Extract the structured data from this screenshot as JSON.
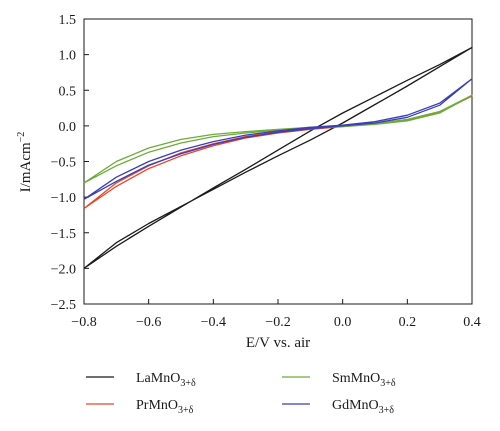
{
  "chart_data": {
    "type": "line",
    "title": "",
    "xlabel": "E/V vs. air",
    "ylabel": "I/mAcm",
    "ylabel_sup": "−2",
    "xlim": [
      -0.8,
      0.4
    ],
    "ylim": [
      -2.5,
      1.5
    ],
    "xticks": [
      -0.8,
      -0.6,
      -0.4,
      -0.2,
      0.0,
      0.2,
      0.4
    ],
    "xtick_labels": [
      "−0.8",
      "−0.6",
      "−0.4",
      "−0.2",
      "0.0",
      "0.2",
      "0.4"
    ],
    "yticks": [
      -2.5,
      -2.0,
      -1.5,
      -1.0,
      -0.5,
      0.0,
      0.5,
      1.0,
      1.5
    ],
    "ytick_labels": [
      "−2.5",
      "−2.0",
      "−1.5",
      "−1.0",
      "−0.5",
      "0.0",
      "0.5",
      "1.0",
      "1.5"
    ],
    "grid": false,
    "legend_placement": "bottom",
    "series": [
      {
        "name_main": "LaMnO",
        "name_sub": "3+δ",
        "color": "#1a1a1a",
        "forward": [
          [
            -0.8,
            -2.0
          ],
          [
            -0.7,
            -1.64
          ],
          [
            -0.6,
            -1.37
          ],
          [
            -0.5,
            -1.13
          ],
          [
            -0.4,
            -0.89
          ],
          [
            -0.3,
            -0.65
          ],
          [
            -0.2,
            -0.42
          ],
          [
            -0.1,
            -0.2
          ],
          [
            0.0,
            0.04
          ],
          [
            0.1,
            0.3
          ],
          [
            0.2,
            0.56
          ],
          [
            0.3,
            0.83
          ],
          [
            0.4,
            1.1
          ]
        ],
        "reverse": [
          [
            0.4,
            1.1
          ],
          [
            0.3,
            0.86
          ],
          [
            0.2,
            0.64
          ],
          [
            0.1,
            0.41
          ],
          [
            0.0,
            0.18
          ],
          [
            -0.1,
            -0.07
          ],
          [
            -0.2,
            -0.34
          ],
          [
            -0.3,
            -0.61
          ],
          [
            -0.4,
            -0.87
          ],
          [
            -0.5,
            -1.14
          ],
          [
            -0.6,
            -1.41
          ],
          [
            -0.7,
            -1.69
          ],
          [
            -0.8,
            -2.0
          ]
        ]
      },
      {
        "name_main": "PrMnO",
        "name_sub": "3+δ",
        "color": "#e8472a",
        "forward": [
          [
            -0.8,
            -1.16
          ],
          [
            -0.7,
            -0.8
          ],
          [
            -0.6,
            -0.56
          ],
          [
            -0.5,
            -0.38
          ],
          [
            -0.4,
            -0.25
          ],
          [
            -0.3,
            -0.15
          ],
          [
            -0.2,
            -0.08
          ],
          [
            -0.1,
            -0.03
          ],
          [
            0.0,
            0.0
          ],
          [
            0.1,
            0.03
          ],
          [
            0.2,
            0.09
          ],
          [
            0.3,
            0.2
          ],
          [
            0.4,
            0.42
          ]
        ],
        "reverse": [
          [
            0.4,
            0.42
          ],
          [
            0.3,
            0.19
          ],
          [
            0.2,
            0.08
          ],
          [
            0.1,
            0.03
          ],
          [
            0.0,
            -0.01
          ],
          [
            -0.1,
            -0.05
          ],
          [
            -0.2,
            -0.1
          ],
          [
            -0.3,
            -0.17
          ],
          [
            -0.4,
            -0.28
          ],
          [
            -0.5,
            -0.42
          ],
          [
            -0.6,
            -0.6
          ],
          [
            -0.7,
            -0.85
          ],
          [
            -0.8,
            -1.16
          ]
        ]
      },
      {
        "name_main": "SmMnO",
        "name_sub": "3+δ",
        "color": "#6dac3a",
        "forward": [
          [
            -0.8,
            -0.8
          ],
          [
            -0.7,
            -0.5
          ],
          [
            -0.6,
            -0.31
          ],
          [
            -0.5,
            -0.19
          ],
          [
            -0.4,
            -0.12
          ],
          [
            -0.3,
            -0.08
          ],
          [
            -0.2,
            -0.05
          ],
          [
            -0.1,
            -0.02
          ],
          [
            0.0,
            0.0
          ],
          [
            0.1,
            0.03
          ],
          [
            0.2,
            0.09
          ],
          [
            0.3,
            0.2
          ],
          [
            0.4,
            0.43
          ]
        ],
        "reverse": [
          [
            0.4,
            0.43
          ],
          [
            0.3,
            0.18
          ],
          [
            0.2,
            0.07
          ],
          [
            0.1,
            0.02
          ],
          [
            0.0,
            -0.01
          ],
          [
            -0.1,
            -0.03
          ],
          [
            -0.2,
            -0.06
          ],
          [
            -0.3,
            -0.1
          ],
          [
            -0.4,
            -0.15
          ],
          [
            -0.5,
            -0.24
          ],
          [
            -0.6,
            -0.37
          ],
          [
            -0.7,
            -0.56
          ],
          [
            -0.8,
            -0.8
          ]
        ]
      },
      {
        "name_main": "GdMnO",
        "name_sub": "3+δ",
        "color": "#3a3fb5",
        "forward": [
          [
            -0.8,
            -1.03
          ],
          [
            -0.7,
            -0.72
          ],
          [
            -0.6,
            -0.5
          ],
          [
            -0.5,
            -0.34
          ],
          [
            -0.4,
            -0.22
          ],
          [
            -0.3,
            -0.13
          ],
          [
            -0.2,
            -0.07
          ],
          [
            -0.1,
            -0.02
          ],
          [
            0.0,
            0.01
          ],
          [
            0.1,
            0.06
          ],
          [
            0.2,
            0.15
          ],
          [
            0.3,
            0.32
          ],
          [
            0.4,
            0.66
          ]
        ],
        "reverse": [
          [
            0.4,
            0.66
          ],
          [
            0.3,
            0.29
          ],
          [
            0.2,
            0.12
          ],
          [
            0.1,
            0.04
          ],
          [
            0.0,
            0.0
          ],
          [
            -0.1,
            -0.04
          ],
          [
            -0.2,
            -0.09
          ],
          [
            -0.3,
            -0.16
          ],
          [
            -0.4,
            -0.26
          ],
          [
            -0.5,
            -0.39
          ],
          [
            -0.6,
            -0.55
          ],
          [
            -0.7,
            -0.78
          ],
          [
            -0.8,
            -1.03
          ]
        ]
      }
    ]
  }
}
